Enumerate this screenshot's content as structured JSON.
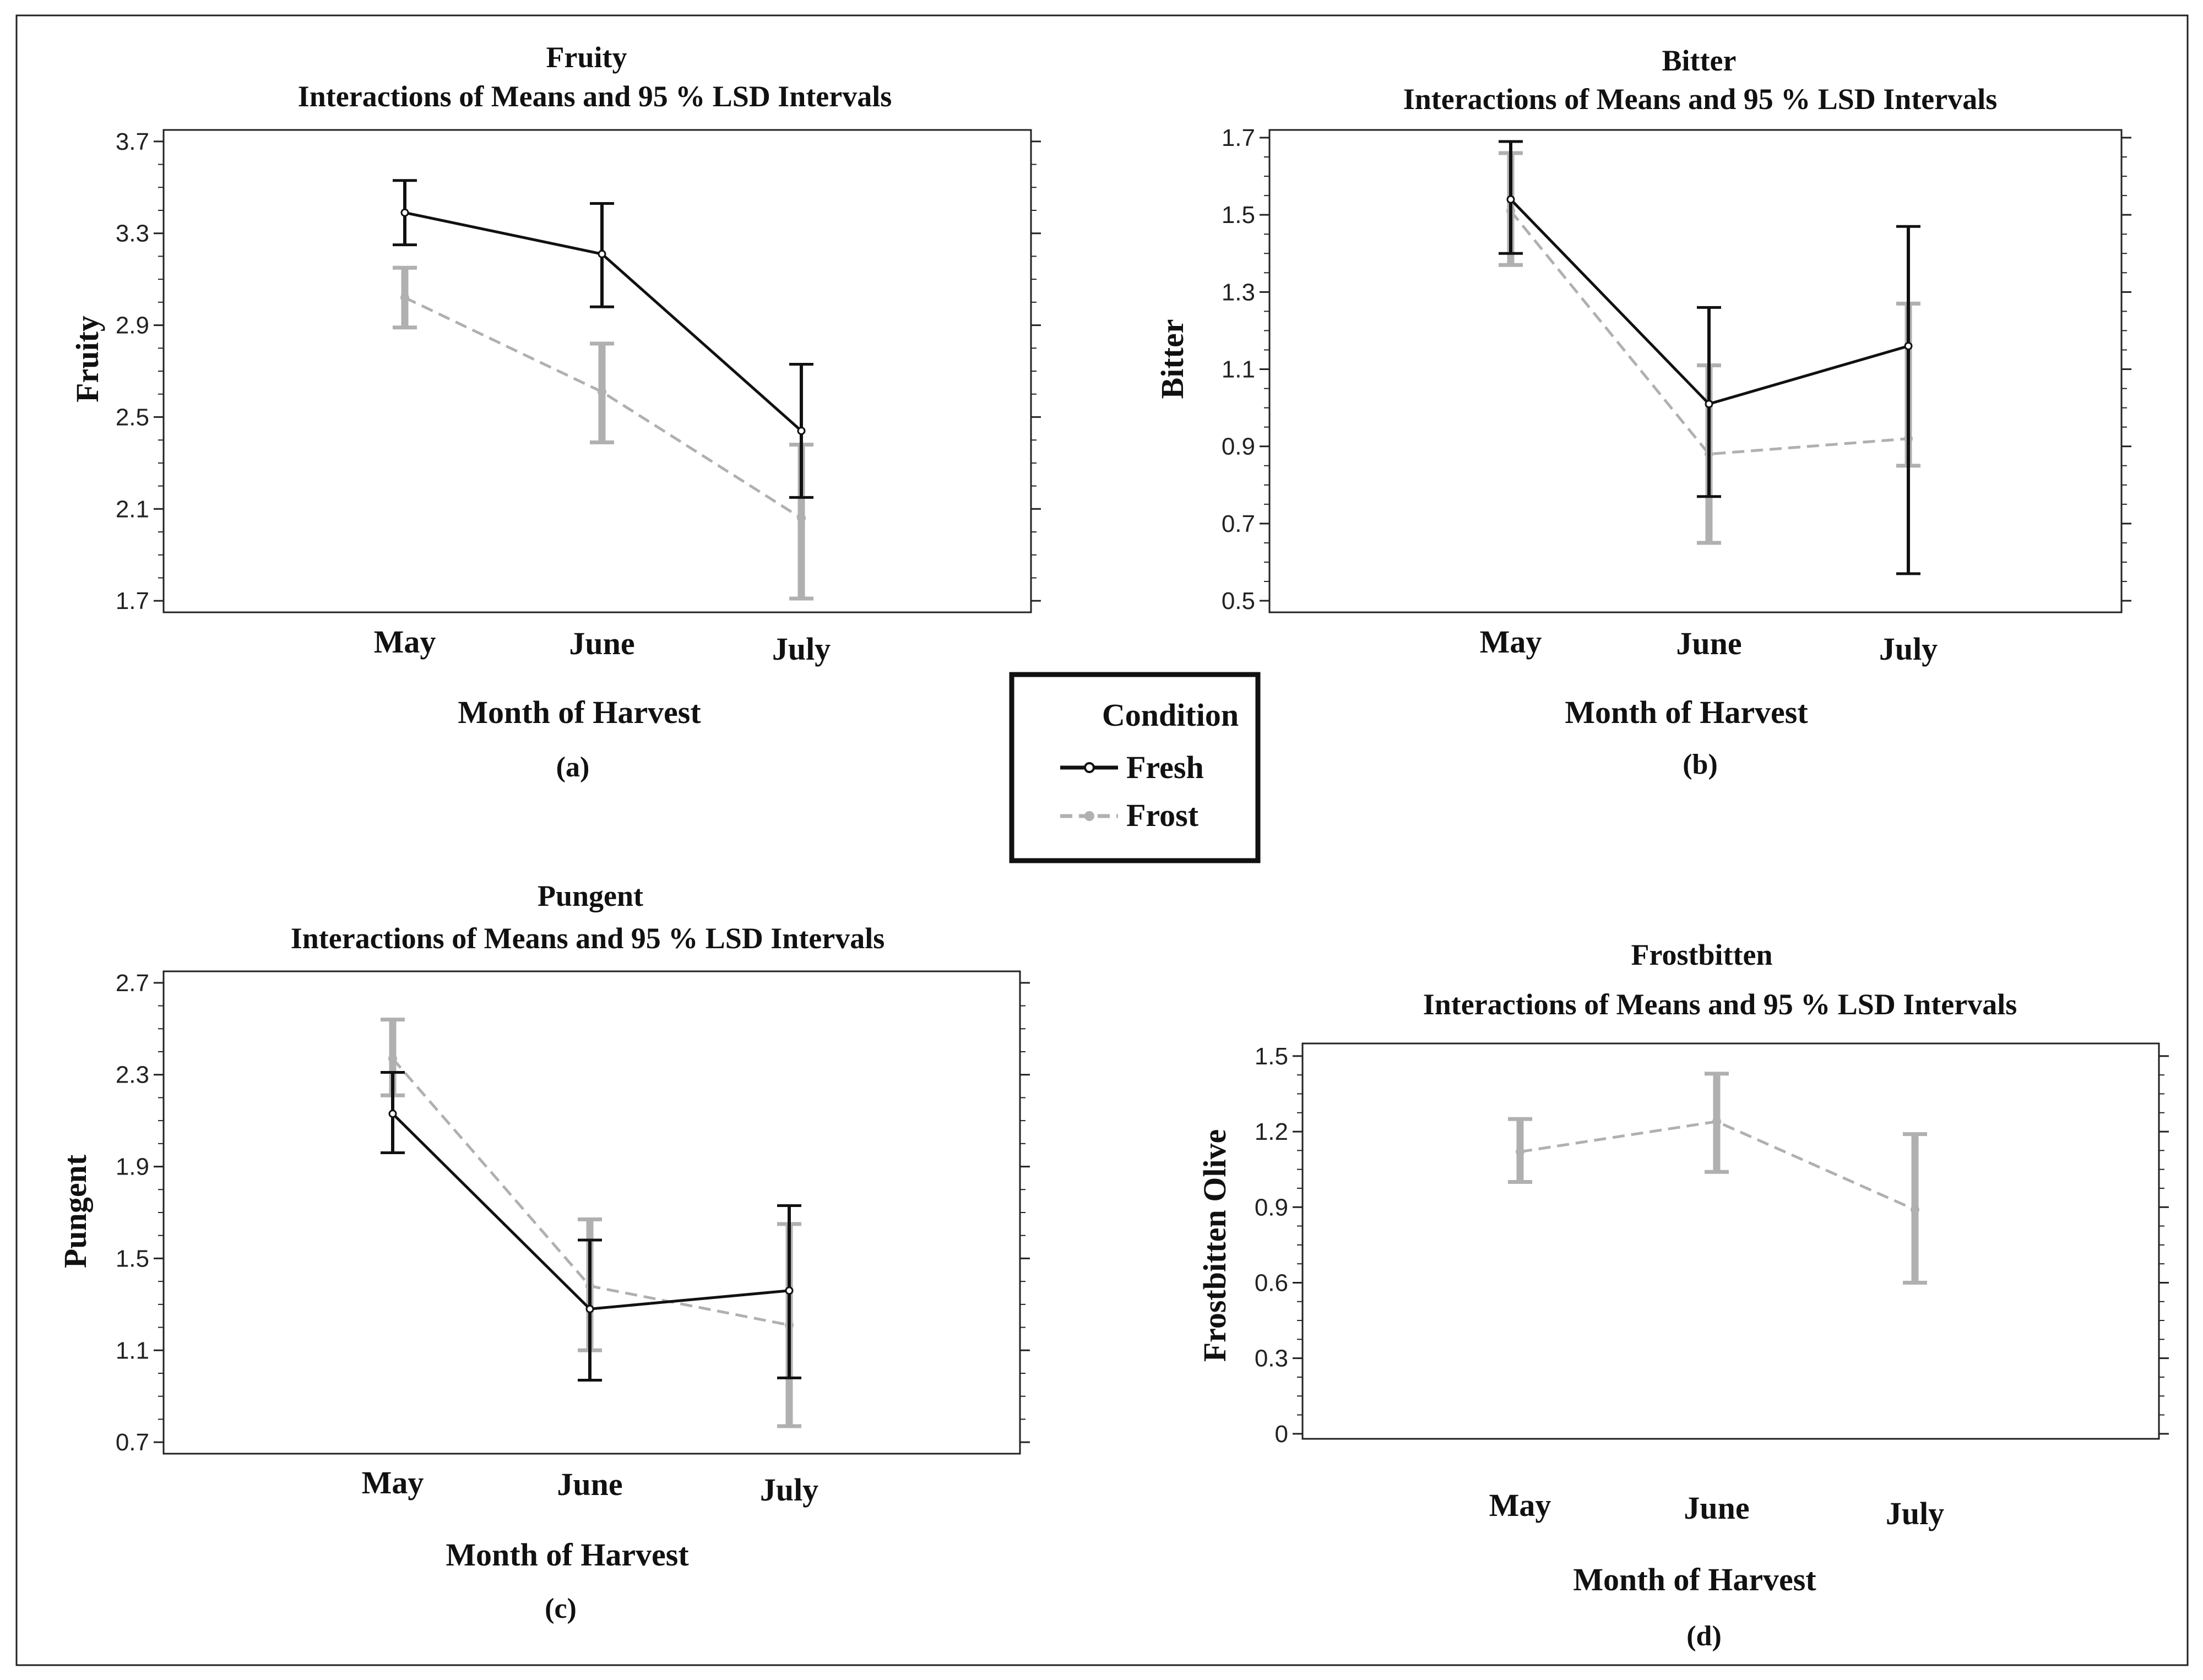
{
  "colors": {
    "fresh": "#111111",
    "frost": "#b0b0b0",
    "frame": "#222222"
  },
  "legend": {
    "title": "Condition",
    "entries": [
      {
        "key": "fresh",
        "label": "Fresh"
      },
      {
        "key": "frost",
        "label": "Frost"
      }
    ]
  },
  "chart_data": [
    {
      "type": "line",
      "panel_label": "(a)",
      "title": "Fruity",
      "subtitle": "Interactions of Means and 95 % LSD Intervals",
      "xlabel": "Month of Harvest",
      "ylabel": "Fruity",
      "categories": [
        "May",
        "June",
        "July"
      ],
      "ylim": [
        1.65,
        3.75
      ],
      "yticks": [
        "3.7",
        "3.3",
        "2.9",
        "2.5",
        "2.1",
        "1.7"
      ],
      "series": [
        {
          "name": "Fresh",
          "key": "fresh",
          "values": [
            3.39,
            3.21,
            2.44
          ],
          "lower": [
            3.25,
            2.98,
            2.15
          ],
          "upper": [
            3.53,
            3.43,
            2.73
          ]
        },
        {
          "name": "Frost",
          "key": "frost",
          "values": [
            3.02,
            2.61,
            2.06
          ],
          "lower": [
            2.89,
            2.39,
            1.71
          ],
          "upper": [
            3.15,
            2.82,
            2.38
          ]
        }
      ]
    },
    {
      "type": "line",
      "panel_label": "(b)",
      "title": "Bitter",
      "subtitle": "Interactions of Means and 95 % LSD Intervals",
      "xlabel": "Month of Harvest",
      "ylabel": "Bitter",
      "categories": [
        "May",
        "June",
        "July"
      ],
      "ylim": [
        0.47,
        1.72
      ],
      "yticks": [
        "1.7",
        "1.5",
        "1.3",
        "1.1",
        "0.9",
        "0.7",
        "0.5"
      ],
      "series": [
        {
          "name": "Fresh",
          "key": "fresh",
          "values": [
            1.54,
            1.01,
            1.16
          ],
          "lower": [
            1.4,
            0.77,
            0.57
          ],
          "upper": [
            1.69,
            1.26,
            1.47
          ]
        },
        {
          "name": "Frost",
          "key": "frost",
          "values": [
            1.51,
            0.88,
            0.92
          ],
          "lower": [
            1.37,
            0.65,
            0.85
          ],
          "upper": [
            1.66,
            1.11,
            1.27
          ]
        }
      ]
    },
    {
      "type": "line",
      "panel_label": "(c)",
      "title": "Pungent",
      "subtitle": "Interactions of Means and 95 % LSD Intervals",
      "xlabel": "Month of Harvest",
      "ylabel": "Pungent",
      "categories": [
        "May",
        "June",
        "July"
      ],
      "ylim": [
        0.65,
        2.75
      ],
      "yticks": [
        "2.7",
        "2.3",
        "1.9",
        "1.5",
        "1.1",
        "0.7"
      ],
      "series": [
        {
          "name": "Fresh",
          "key": "fresh",
          "values": [
            2.13,
            1.28,
            1.36
          ],
          "lower": [
            1.96,
            0.97,
            0.98
          ],
          "upper": [
            2.31,
            1.58,
            1.73
          ]
        },
        {
          "name": "Frost",
          "key": "frost",
          "values": [
            2.37,
            1.38,
            1.21
          ],
          "lower": [
            2.21,
            1.1,
            0.77
          ],
          "upper": [
            2.54,
            1.67,
            1.65
          ]
        }
      ]
    },
    {
      "type": "line",
      "panel_label": "(d)",
      "title": "Frostbitten",
      "subtitle": "Interactions of Means and 95 % LSD Intervals",
      "xlabel": "Month of Harvest",
      "ylabel": "Frostbitten Olive",
      "categories": [
        "May",
        "June",
        "July"
      ],
      "ylim": [
        -0.02,
        1.55
      ],
      "yticks": [
        "1.5",
        "1.2",
        "0.9",
        "0.6",
        "0.3",
        "0"
      ],
      "series": [
        {
          "name": "Frost",
          "key": "frost",
          "values": [
            1.12,
            1.24,
            0.89
          ],
          "lower": [
            1.0,
            1.04,
            0.6
          ],
          "upper": [
            1.25,
            1.43,
            1.19
          ]
        }
      ]
    }
  ]
}
